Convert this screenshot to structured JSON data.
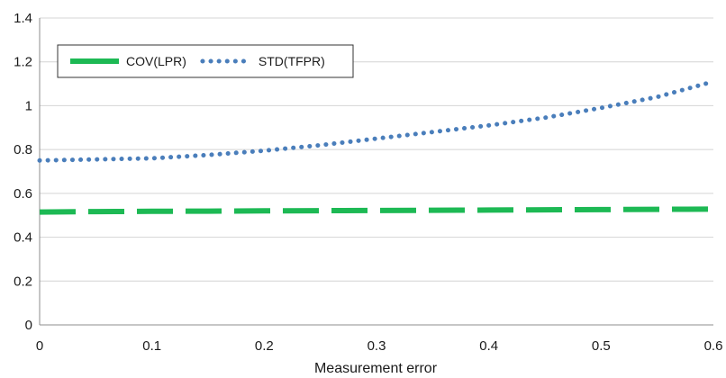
{
  "chart_data": {
    "type": "line",
    "title": "",
    "xlabel": "Measurement error",
    "ylabel": "",
    "xlim": [
      0,
      0.6
    ],
    "ylim": [
      0,
      1.4
    ],
    "x_ticks": [
      0,
      0.1,
      0.2,
      0.3,
      0.4,
      0.5,
      0.6
    ],
    "x_tick_labels": [
      "0",
      "0.1",
      "0.2",
      "0.3",
      "0.4",
      "0.5",
      "0.6"
    ],
    "y_ticks": [
      0,
      0.2,
      0.4,
      0.6,
      0.8,
      1,
      1.2,
      1.4
    ],
    "y_tick_labels": [
      "0",
      "0.2",
      "0.4",
      "0.6",
      "0.8",
      "1",
      "1.2",
      "1.4"
    ],
    "grid": "horizontal",
    "legend_position": "top-left",
    "series": [
      {
        "name": "COV(LPR)",
        "color": "#1db954",
        "style": "dashed",
        "x": [
          0,
          0.05,
          0.1,
          0.15,
          0.2,
          0.25,
          0.3,
          0.35,
          0.4,
          0.45,
          0.5,
          0.55,
          0.6
        ],
        "values": [
          0.515,
          0.517,
          0.518,
          0.519,
          0.52,
          0.521,
          0.522,
          0.523,
          0.524,
          0.525,
          0.526,
          0.527,
          0.528
        ]
      },
      {
        "name": "STD(TFPR)",
        "color": "#4a7ebb",
        "style": "dotted",
        "x": [
          0,
          0.05,
          0.1,
          0.15,
          0.2,
          0.25,
          0.3,
          0.35,
          0.4,
          0.45,
          0.5,
          0.55,
          0.6
        ],
        "values": [
          0.75,
          0.755,
          0.76,
          0.775,
          0.795,
          0.82,
          0.85,
          0.88,
          0.91,
          0.945,
          0.99,
          1.04,
          1.11
        ]
      }
    ]
  }
}
